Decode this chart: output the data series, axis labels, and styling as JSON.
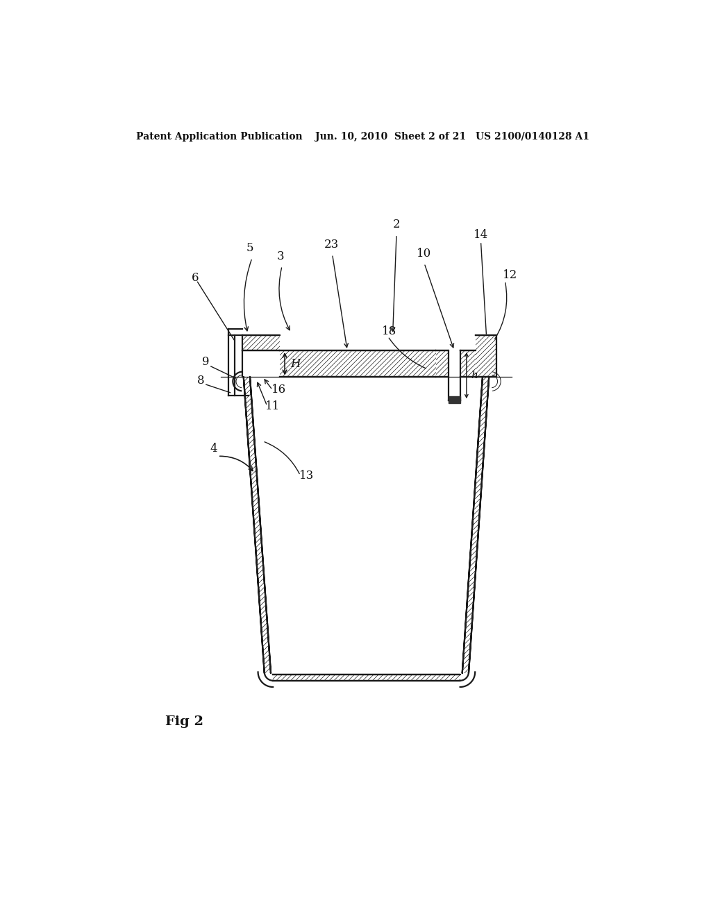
{
  "bg_color": "#ffffff",
  "header_left": "Patent Application Publication",
  "header_mid": "Jun. 10, 2010  Sheet 2 of 21",
  "header_right": "US 2100/0140128 A1",
  "fig_label": "Fig 2",
  "color": "#1a1a1a",
  "lw": 1.6,
  "lw_thin": 0.7
}
